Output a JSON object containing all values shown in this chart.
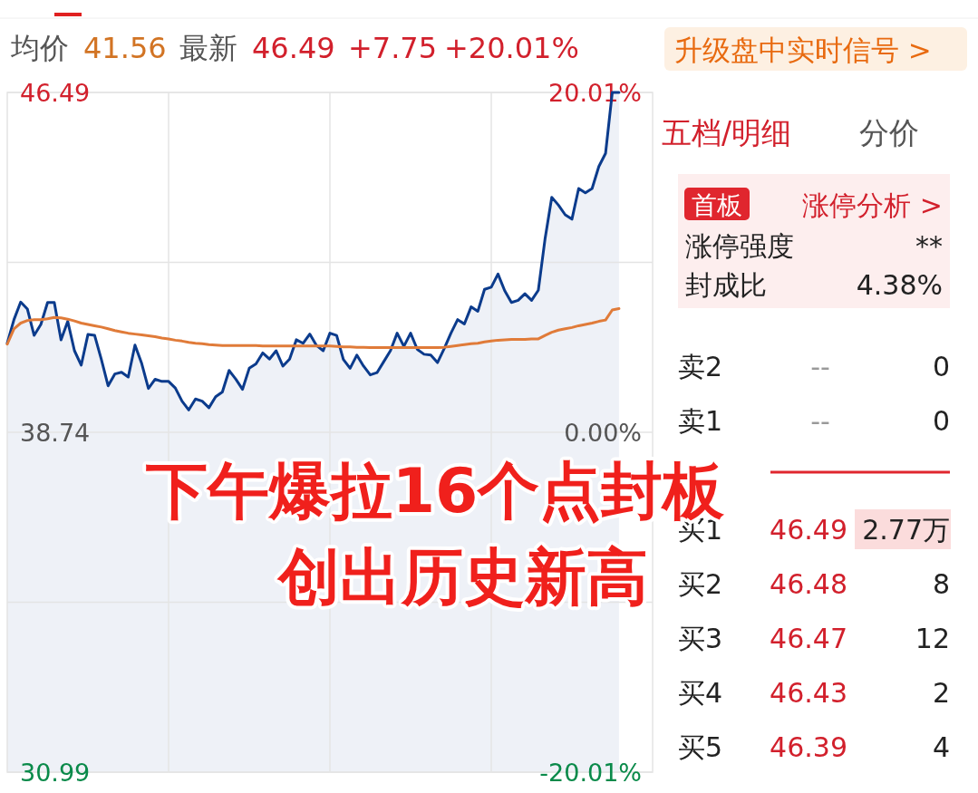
{
  "chart_data": {
    "type": "line",
    "title": "下午爆拉16个点封板",
    "subtitle": "创出历史新高",
    "categories": [
      null,
      null,
      null,
      null,
      null,
      null,
      null,
      null,
      null,
      null,
      null,
      null,
      null,
      null,
      null,
      null,
      null,
      null,
      null,
      null,
      null,
      null,
      null,
      null,
      null,
      null,
      null,
      null,
      null,
      null,
      null,
      null,
      null,
      null,
      null,
      null,
      null,
      null,
      null,
      null,
      null,
      null,
      null,
      null,
      null,
      null,
      null,
      null,
      null,
      null,
      null,
      null,
      null,
      null,
      null,
      null,
      null,
      null,
      null,
      null,
      null,
      null,
      null,
      null,
      null,
      null,
      null,
      null,
      null,
      null,
      null,
      null,
      null,
      null,
      null,
      null,
      null,
      null,
      null,
      null,
      null,
      null,
      null,
      null,
      null,
      null,
      null,
      null,
      null,
      null,
      null,
      null,
      null,
      null,
      null,
      null
    ],
    "ylim": [
      30.99,
      46.49
    ],
    "yticks": [
      46.49,
      {
        "value": 42.615,
        "label": null
      },
      38.74,
      {
        "value": 34.865,
        "label": null
      },
      30.99
    ],
    "y2lim": [
      -20.01,
      20.01
    ],
    "y2ticks": [
      {
        "value": 20.01,
        "label": "20.01%"
      },
      {
        "value": 0,
        "label": "0.00%"
      },
      {
        "value": -20.01,
        "label": "-20.01%"
      }
    ],
    "grid": true,
    "series": [
      {
        "type": "area",
        "color": "#0b3b8c",
        "values": [
          40.77,
          41.31,
          41.71,
          41.55,
          40.95,
          41.2,
          41.7,
          41.7,
          40.85,
          41.27,
          40.6,
          40.27,
          40.97,
          40.95,
          40.4,
          39.8,
          40.07,
          40.11,
          40.0,
          40.73,
          40.31,
          39.74,
          39.95,
          39.9,
          39.9,
          39.75,
          39.45,
          39.25,
          39.5,
          39.45,
          39.3,
          39.55,
          39.66,
          40.15,
          39.95,
          39.72,
          40.2,
          40.3,
          40.55,
          40.41,
          40.6,
          40.25,
          40.41,
          40.85,
          40.77,
          40.98,
          40.72,
          40.6,
          41.0,
          40.95,
          40.4,
          40.2,
          40.5,
          40.25,
          40.05,
          40.1,
          40.35,
          40.6,
          41.0,
          40.7,
          41.0,
          40.63,
          40.52,
          40.5,
          40.33,
          40.65,
          41.0,
          41.31,
          41.21,
          41.6,
          41.5,
          42.0,
          42.05,
          42.35,
          41.97,
          41.7,
          41.75,
          41.9,
          41.75,
          41.98,
          43.15,
          44.1,
          43.92,
          43.7,
          43.6,
          44.3,
          44.2,
          44.3,
          44.8,
          45.1,
          46.49,
          46.49,
          null,
          null,
          null,
          null
        ]
      },
      {
        "type": "line",
        "color": "#e07b39",
        "values": [
          40.75,
          41.1,
          41.23,
          41.29,
          41.31,
          41.31,
          41.33,
          41.36,
          41.35,
          41.32,
          41.28,
          41.23,
          41.2,
          41.17,
          41.14,
          41.1,
          41.06,
          41.03,
          41.0,
          40.98,
          40.96,
          40.94,
          40.92,
          40.89,
          40.87,
          40.84,
          40.82,
          40.79,
          40.77,
          40.76,
          40.74,
          40.73,
          40.72,
          40.72,
          40.72,
          40.72,
          40.72,
          40.72,
          40.71,
          40.71,
          40.71,
          40.71,
          40.71,
          40.71,
          40.71,
          40.71,
          40.71,
          40.71,
          40.71,
          40.7,
          40.69,
          40.69,
          40.68,
          40.68,
          40.67,
          40.67,
          40.67,
          40.67,
          40.67,
          40.67,
          40.67,
          40.67,
          40.67,
          40.67,
          40.67,
          40.68,
          40.7,
          40.72,
          40.74,
          40.76,
          40.77,
          40.8,
          40.82,
          40.84,
          40.85,
          40.86,
          40.86,
          40.86,
          40.87,
          40.87,
          40.95,
          41.02,
          41.07,
          41.1,
          41.13,
          41.17,
          41.2,
          41.23,
          41.27,
          41.3,
          41.53,
          41.56,
          null,
          null,
          null,
          null
        ]
      }
    ],
    "annotations": [
      "均价",
      "41.56",
      "最新",
      "46.49",
      "+7.75",
      "+20.01%",
      "升级盘中实时信号 >",
      "五档/明细",
      "分价",
      "首板",
      "涨停分析 >",
      "涨停强度",
      "**",
      "封成比",
      "4.38%",
      "卖2",
      "--",
      "0",
      "卖1",
      "--",
      "0",
      "买1",
      "46.49",
      "2.77万",
      "买2",
      "46.48",
      "8",
      "买3",
      "46.47",
      "12",
      "买4",
      "46.43",
      "2",
      "买5",
      "46.39",
      "4"
    ]
  }
}
